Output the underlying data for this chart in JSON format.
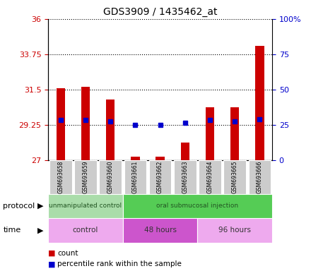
{
  "title": "GDS3909 / 1435462_at",
  "samples": [
    "GSM693658",
    "GSM693659",
    "GSM693660",
    "GSM693661",
    "GSM693662",
    "GSM693663",
    "GSM693664",
    "GSM693665",
    "GSM693666"
  ],
  "bar_values": [
    31.6,
    31.65,
    30.85,
    27.22,
    27.22,
    28.1,
    30.35,
    30.35,
    34.3
  ],
  "blue_values": [
    29.55,
    29.55,
    29.45,
    29.25,
    29.25,
    29.38,
    29.55,
    29.45,
    29.6
  ],
  "bar_baseline": 27.0,
  "ylim_left": [
    27.0,
    36.0
  ],
  "ylim_right": [
    0,
    100
  ],
  "yticks_left": [
    27,
    29.25,
    31.5,
    33.75,
    36
  ],
  "ytick_labels_left": [
    "27",
    "29.25",
    "31.5",
    "33.75",
    "36"
  ],
  "yticks_right": [
    0,
    25,
    50,
    75,
    100
  ],
  "ytick_labels_right": [
    "0",
    "25",
    "50",
    "75",
    "100%"
  ],
  "left_color": "#cc0000",
  "right_color": "#0000cc",
  "bar_color": "#cc0000",
  "dot_color": "#0000cc",
  "protocol_groups": [
    {
      "label": "unmanipulated control",
      "start": 0,
      "end": 3,
      "color": "#aaddaa"
    },
    {
      "label": "oral submucosal injection",
      "start": 3,
      "end": 9,
      "color": "#55cc55"
    }
  ],
  "time_groups": [
    {
      "label": "control",
      "start": 0,
      "end": 3,
      "color": "#eeaaee"
    },
    {
      "label": "48 hours",
      "start": 3,
      "end": 6,
      "color": "#cc55cc"
    },
    {
      "label": "96 hours",
      "start": 6,
      "end": 9,
      "color": "#eeaaee"
    }
  ],
  "legend_items": [
    {
      "color": "#cc0000",
      "label": "count"
    },
    {
      "color": "#0000cc",
      "label": "percentile rank within the sample"
    }
  ],
  "protocol_label": "protocol",
  "time_label": "time",
  "bg_color": "#ffffff",
  "plot_area_bg": "#ffffff",
  "bar_width": 0.35,
  "dot_size": 4
}
